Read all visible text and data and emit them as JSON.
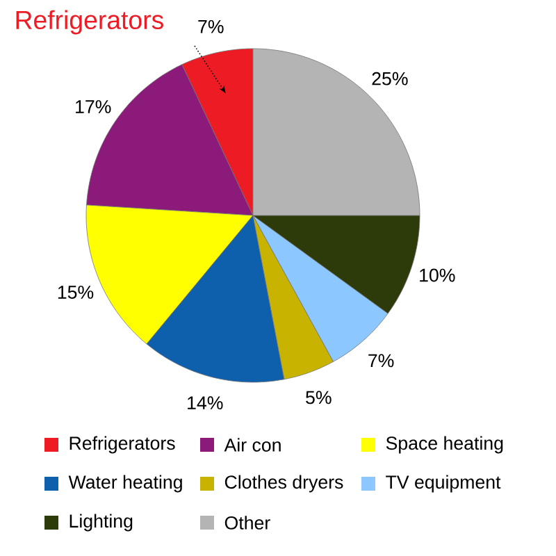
{
  "chart_data": {
    "type": "pie",
    "title": "Refrigerators",
    "categories": [
      "Refrigerators",
      "Air con",
      "Space heating",
      "Water heating",
      "Clothes dryers",
      "TV equipment",
      "Lighting",
      "Other"
    ],
    "values": [
      7,
      17,
      15,
      14,
      5,
      7,
      10,
      25
    ],
    "colors": [
      "#ed1c24",
      "#8b1a7a",
      "#ffff00",
      "#0e5fac",
      "#c8b400",
      "#8cc8ff",
      "#2d3a0a",
      "#b4b4b4"
    ],
    "value_labels": [
      "7%",
      "17%",
      "15%",
      "14%",
      "5%",
      "7%",
      "10%",
      "25%"
    ],
    "legend": "bottom"
  }
}
